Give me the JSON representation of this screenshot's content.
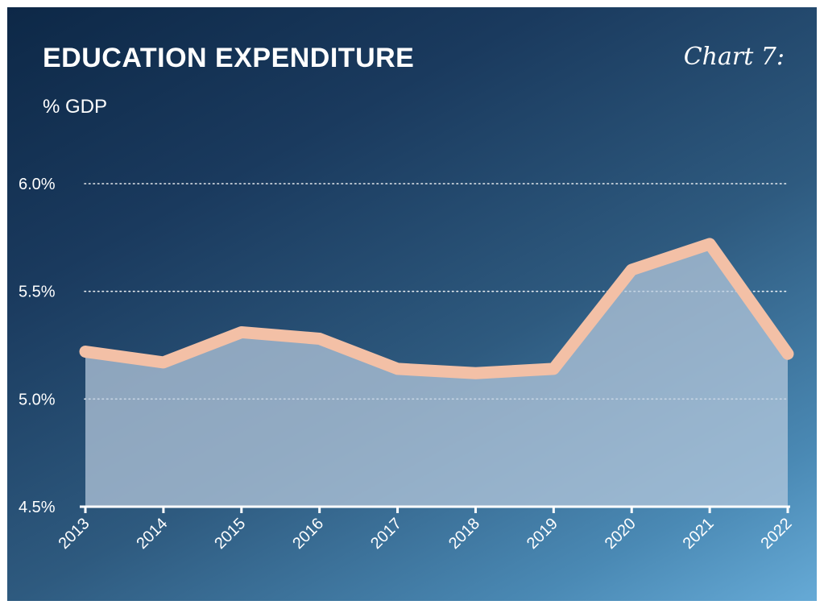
{
  "header": {
    "title": "EDUCATION EXPENDITURE",
    "chart_number": "Chart 7:",
    "unit": "% GDP"
  },
  "colors": {
    "line": "#f3c0a6",
    "area_fill": "#b8cade",
    "grid": "#ffffff"
  },
  "chart_data": {
    "type": "area",
    "title": "EDUCATION EXPENDITURE",
    "ylabel": "% GDP",
    "x": [
      "2013",
      "2014",
      "2015",
      "2016",
      "2017",
      "2018",
      "2019",
      "2020",
      "2021",
      "2022"
    ],
    "series": [
      {
        "values": [
          5.22,
          5.17,
          5.31,
          5.28,
          5.14,
          5.12,
          5.14,
          5.6,
          5.72,
          5.21
        ]
      }
    ],
    "ylim": [
      4.5,
      6.0
    ],
    "yticks": [
      4.5,
      5.0,
      5.5,
      6.0
    ],
    "ytick_labels": [
      "4.5%",
      "5.0%",
      "5.5%",
      "6.0%"
    ],
    "grid": true
  }
}
